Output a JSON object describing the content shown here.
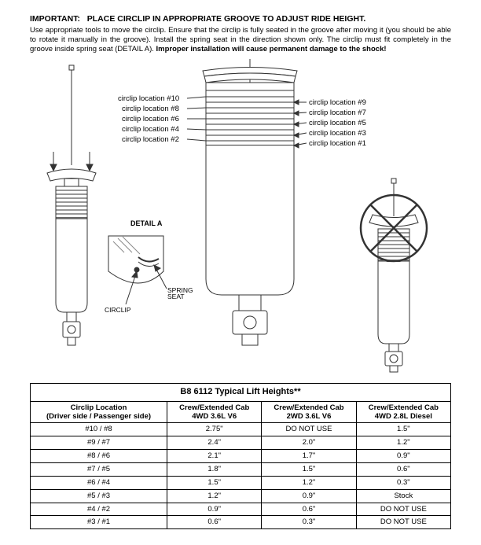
{
  "header": {
    "important_prefix": "IMPORTANT:",
    "important_title": "PLACE CIRCLIP IN APPROPRIATE GROOVE TO ADJUST RIDE HEIGHT.",
    "paragraph_plain": "Use appropriate tools to move the circlip.  Ensure that the circlip is fully seated in the groove after moving it (you should be able to rotate it manually in the groove).  Install the spring seat in the direction shown only.  The circlip must fit completely in the groove inside spring seat (DETAIL A).  ",
    "paragraph_bold": "Improper installation will cause permanent damage to the shock!"
  },
  "diagram": {
    "left_labels": [
      "circlip location #10",
      "circlip location #8",
      "circlip location #6",
      "circlip location #4",
      "circlip location #2"
    ],
    "right_labels": [
      "circlip location #9",
      "circlip location #7",
      "circlip location #5",
      "circlip location #3",
      "circlip location #1"
    ],
    "detail_a": "DETAIL A",
    "circlip": "CIRCLIP",
    "spring_seat": "SPRING SEAT",
    "stroke": "#333333",
    "fill": "#ffffff",
    "light": "#888888"
  },
  "table": {
    "title": "B8 6112 Typical Lift Heights**",
    "col0_line1": "Circlip Location",
    "col0_line2": "(Driver side / Passenger side)",
    "col1_line1": "Crew/Extended Cab",
    "col1_line2": "4WD 3.6L V6",
    "col2_line1": "Crew/Extended Cab",
    "col2_line2": "2WD 3.6L V6",
    "col3_line1": "Crew/Extended Cab",
    "col3_line2": "4WD 2.8L Diesel",
    "rows": [
      {
        "loc": "#10 / #8",
        "c1": "2.75\"",
        "c2": "DO NOT USE",
        "c3": "1.5\""
      },
      {
        "loc": "#9 / #7",
        "c1": "2.4\"",
        "c2": "2.0\"",
        "c3": "1.2\""
      },
      {
        "loc": "#8 / #6",
        "c1": "2.1\"",
        "c2": "1.7\"",
        "c3": "0.9\""
      },
      {
        "loc": "#7 / #5",
        "c1": "1.8\"",
        "c2": "1.5\"",
        "c3": "0.6\""
      },
      {
        "loc": "#6 / #4",
        "c1": "1.5\"",
        "c2": "1.2\"",
        "c3": "0.3\""
      },
      {
        "loc": "#5 / #3",
        "c1": "1.2\"",
        "c2": "0.9\"",
        "c3": "Stock"
      },
      {
        "loc": "#4 / #2",
        "c1": "0.9\"",
        "c2": "0.6\"",
        "c3": "DO NOT USE"
      },
      {
        "loc": "#3 / #1",
        "c1": "0.6\"",
        "c2": "0.3\"",
        "c3": "DO NOT USE"
      }
    ]
  }
}
